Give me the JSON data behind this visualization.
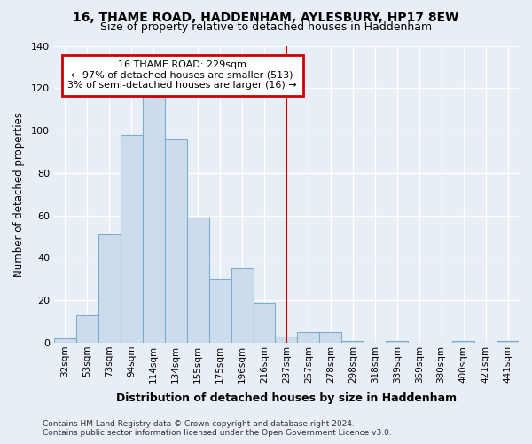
{
  "title": "16, THAME ROAD, HADDENHAM, AYLESBURY, HP17 8EW",
  "subtitle": "Size of property relative to detached houses in Haddenham",
  "xlabel": "Distribution of detached houses by size in Haddenham",
  "ylabel": "Number of detached properties",
  "bar_color": "#ccdcec",
  "bar_edge_color": "#7aaecc",
  "categories": [
    "32sqm",
    "53sqm",
    "73sqm",
    "94sqm",
    "114sqm",
    "134sqm",
    "155sqm",
    "175sqm",
    "196sqm",
    "216sqm",
    "237sqm",
    "257sqm",
    "278sqm",
    "298sqm",
    "318sqm",
    "339sqm",
    "359sqm",
    "380sqm",
    "400sqm",
    "421sqm",
    "441sqm"
  ],
  "values": [
    2,
    13,
    51,
    98,
    116,
    96,
    59,
    30,
    35,
    19,
    3,
    5,
    5,
    1,
    0,
    1,
    0,
    0,
    1,
    0,
    1
  ],
  "vline_x": 10,
  "vline_color": "#cc0000",
  "annotation_text": "16 THAME ROAD: 229sqm\n← 97% of detached houses are smaller (513)\n3% of semi-detached houses are larger (16) →",
  "annotation_box_color": "#ffffff",
  "annotation_box_edge": "#cc0000",
  "ylim": [
    0,
    140
  ],
  "yticks": [
    0,
    20,
    40,
    60,
    80,
    100,
    120,
    140
  ],
  "bg_color": "#e8eef5",
  "grid_color": "#ffffff",
  "footer": "Contains HM Land Registry data © Crown copyright and database right 2024.\nContains public sector information licensed under the Open Government Licence v3.0."
}
